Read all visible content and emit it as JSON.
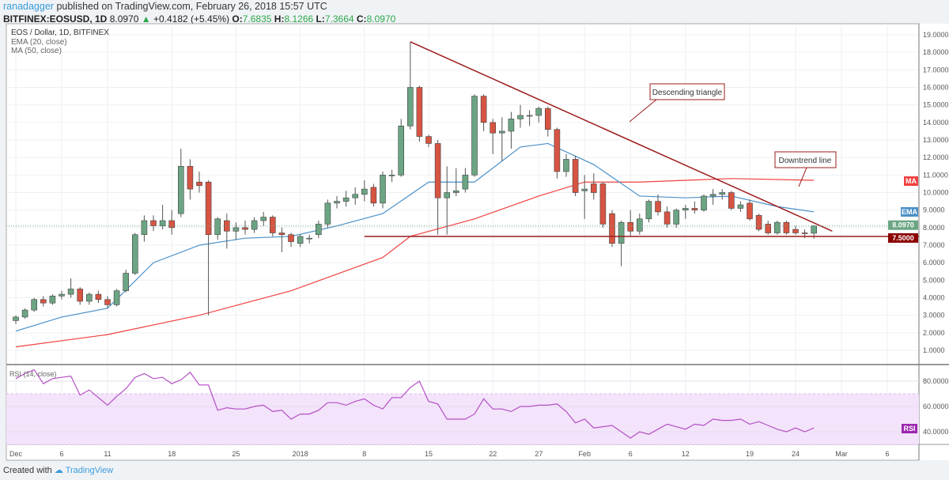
{
  "header": {
    "user": "ranadagger",
    "published": "published on TradingView.com, February 26, 2018 15:57 UTC",
    "symbol": "BITFINEX:EOSUSD, 1D",
    "last": "8.0970",
    "change": "+0.4182 (+5.45%)",
    "o_label": "O:",
    "o": "7.6835",
    "h_label": "H:",
    "h": "8.1266",
    "l_label": "L:",
    "l": "7.3664",
    "c_label": "C:",
    "c": "8.0970"
  },
  "footer": {
    "created": "Created with",
    "brand": "TradingView"
  },
  "chart_data": {
    "type": "candlestick",
    "title": "EOS / Dollar, 1D, BITFINEX",
    "legend": [
      "EMA (20, close)",
      "MA (50, close)"
    ],
    "ylim": [
      0,
      19.6
    ],
    "yticks": [
      "1.0000",
      "2.0000",
      "3.0000",
      "4.0000",
      "5.0000",
      "6.0000",
      "7.0000",
      "8.0000",
      "9.0000",
      "10.0000",
      "11.0000",
      "12.0000",
      "13.0000",
      "14.0000",
      "15.0000",
      "16.0000",
      "17.0000",
      "18.0000",
      "19.0000"
    ],
    "xticks": [
      {
        "day": 0,
        "label": "Dec"
      },
      {
        "day": 5,
        "label": "6"
      },
      {
        "day": 10,
        "label": "11"
      },
      {
        "day": 17,
        "label": "18"
      },
      {
        "day": 24,
        "label": "25"
      },
      {
        "day": 31,
        "label": "2018"
      },
      {
        "day": 38,
        "label": "8"
      },
      {
        "day": 45,
        "label": "15"
      },
      {
        "day": 52,
        "label": "22"
      },
      {
        "day": 57,
        "label": "27"
      },
      {
        "day": 62,
        "label": "Feb"
      },
      {
        "day": 67,
        "label": "6"
      },
      {
        "day": 73,
        "label": "12"
      },
      {
        "day": 80,
        "label": "19"
      },
      {
        "day": 85,
        "label": "24"
      },
      {
        "day": 90,
        "label": "Mar"
      },
      {
        "day": 95,
        "label": "6"
      }
    ],
    "ohlc": [
      [
        2.7,
        3.0,
        2.5,
        2.9
      ],
      [
        2.9,
        3.4,
        2.8,
        3.3
      ],
      [
        3.3,
        4.0,
        3.2,
        3.9
      ],
      [
        3.9,
        4.1,
        3.5,
        3.7
      ],
      [
        3.7,
        4.2,
        3.6,
        4.1
      ],
      [
        4.1,
        4.4,
        3.9,
        4.2
      ],
      [
        4.2,
        5.1,
        4.0,
        4.5
      ],
      [
        4.5,
        4.6,
        3.6,
        3.8
      ],
      [
        3.8,
        4.3,
        3.6,
        4.2
      ],
      [
        4.2,
        4.4,
        3.7,
        3.9
      ],
      [
        3.9,
        4.1,
        3.4,
        3.6
      ],
      [
        3.6,
        4.5,
        3.5,
        4.4
      ],
      [
        4.4,
        5.6,
        4.3,
        5.4
      ],
      [
        5.4,
        7.7,
        5.3,
        7.6
      ],
      [
        7.6,
        8.7,
        7.2,
        8.4
      ],
      [
        8.4,
        8.7,
        7.8,
        8.1
      ],
      [
        8.1,
        9.3,
        7.9,
        8.4
      ],
      [
        8.4,
        9.0,
        7.6,
        8.0
      ],
      [
        8.8,
        12.5,
        8.6,
        11.5
      ],
      [
        11.5,
        11.9,
        9.6,
        10.2
      ],
      [
        10.6,
        11.2,
        10.0,
        10.4
      ],
      [
        10.6,
        10.7,
        3.0,
        7.6
      ],
      [
        7.6,
        8.6,
        7.3,
        8.5
      ],
      [
        8.4,
        8.8,
        6.8,
        7.8
      ],
      [
        7.8,
        8.3,
        7.3,
        8.0
      ],
      [
        8.0,
        8.4,
        7.6,
        7.9
      ],
      [
        7.9,
        8.6,
        7.7,
        8.4
      ],
      [
        8.4,
        8.9,
        8.1,
        8.6
      ],
      [
        8.6,
        8.7,
        7.5,
        7.7
      ],
      [
        7.7,
        8.0,
        6.6,
        7.6
      ],
      [
        7.6,
        7.7,
        6.9,
        7.2
      ],
      [
        7.1,
        7.6,
        6.9,
        7.5
      ],
      [
        7.4,
        7.6,
        7.1,
        7.4
      ],
      [
        7.6,
        8.4,
        7.4,
        8.2
      ],
      [
        8.2,
        9.6,
        8.0,
        9.4
      ],
      [
        9.4,
        9.8,
        9.1,
        9.5
      ],
      [
        9.5,
        10.1,
        9.2,
        9.7
      ],
      [
        9.7,
        10.3,
        9.3,
        9.9
      ],
      [
        9.9,
        10.7,
        9.5,
        10.2
      ],
      [
        10.3,
        10.5,
        9.2,
        9.4
      ],
      [
        9.4,
        11.2,
        9.1,
        11.0
      ],
      [
        11.0,
        11.3,
        10.6,
        11.0
      ],
      [
        11.0,
        14.2,
        10.9,
        13.8
      ],
      [
        13.8,
        18.6,
        13.6,
        16.0
      ],
      [
        16.0,
        16.1,
        12.9,
        13.2
      ],
      [
        13.2,
        13.3,
        12.6,
        12.8
      ],
      [
        12.8,
        13.0,
        7.6,
        9.7
      ],
      [
        9.7,
        11.5,
        7.6,
        10.0
      ],
      [
        10.0,
        11.4,
        9.8,
        10.1
      ],
      [
        10.2,
        11.4,
        10.0,
        11.0
      ],
      [
        11.0,
        15.6,
        10.9,
        15.5
      ],
      [
        15.5,
        15.6,
        13.5,
        14.0
      ],
      [
        14.0,
        14.2,
        12.2,
        13.4
      ],
      [
        13.4,
        14.3,
        11.8,
        13.5
      ],
      [
        13.5,
        14.6,
        12.5,
        14.2
      ],
      [
        14.2,
        15.0,
        13.7,
        14.4
      ],
      [
        14.4,
        14.7,
        13.8,
        14.4
      ],
      [
        14.4,
        14.9,
        14.0,
        14.8
      ],
      [
        14.8,
        14.9,
        13.2,
        13.6
      ],
      [
        13.6,
        13.7,
        10.8,
        11.2
      ],
      [
        11.2,
        12.2,
        10.9,
        11.9
      ],
      [
        11.9,
        12.1,
        9.8,
        10.0
      ],
      [
        10.1,
        11.0,
        8.5,
        10.2
      ],
      [
        10.5,
        11.1,
        9.6,
        10.0
      ],
      [
        10.5,
        10.6,
        8.0,
        8.2
      ],
      [
        8.8,
        9.0,
        6.9,
        7.1
      ],
      [
        7.1,
        8.4,
        5.8,
        8.3
      ],
      [
        8.3,
        9.0,
        7.5,
        7.8
      ],
      [
        7.8,
        8.8,
        7.6,
        8.5
      ],
      [
        8.5,
        9.6,
        8.3,
        9.5
      ],
      [
        9.5,
        9.9,
        8.7,
        8.9
      ],
      [
        8.9,
        9.2,
        8.0,
        8.2
      ],
      [
        8.2,
        9.1,
        8.0,
        9.0
      ],
      [
        9.0,
        9.3,
        8.5,
        9.1
      ],
      [
        9.1,
        9.5,
        8.8,
        9.0
      ],
      [
        9.0,
        9.9,
        8.9,
        9.8
      ],
      [
        9.8,
        10.2,
        9.3,
        9.9
      ],
      [
        9.9,
        10.2,
        9.6,
        10.0
      ],
      [
        10.0,
        10.1,
        9.0,
        9.1
      ],
      [
        9.1,
        9.5,
        8.9,
        9.3
      ],
      [
        9.4,
        9.6,
        8.4,
        8.5
      ],
      [
        8.7,
        8.8,
        7.8,
        7.9
      ],
      [
        8.2,
        8.4,
        7.6,
        7.7
      ],
      [
        7.7,
        8.4,
        7.6,
        8.3
      ],
      [
        8.3,
        8.4,
        7.6,
        7.7
      ],
      [
        7.9,
        8.1,
        7.6,
        7.7
      ],
      [
        7.7,
        7.9,
        7.4,
        7.68
      ],
      [
        7.68,
        8.13,
        7.37,
        8.1
      ]
    ],
    "ema": [
      [
        0,
        2.1
      ],
      [
        5,
        2.9
      ],
      [
        10,
        3.4
      ],
      [
        15,
        6.0
      ],
      [
        20,
        7.0
      ],
      [
        25,
        7.4
      ],
      [
        30,
        7.5
      ],
      [
        35,
        8.1
      ],
      [
        40,
        8.8
      ],
      [
        45,
        10.6
      ],
      [
        50,
        10.6
      ],
      [
        55,
        12.6
      ],
      [
        58,
        12.8
      ],
      [
        63,
        11.6
      ],
      [
        68,
        9.8
      ],
      [
        73,
        9.7
      ],
      [
        78,
        9.8
      ],
      [
        83,
        9.2
      ],
      [
        87,
        8.9
      ]
    ],
    "ma": [
      [
        0,
        1.2
      ],
      [
        10,
        1.9
      ],
      [
        20,
        3.0
      ],
      [
        30,
        4.4
      ],
      [
        40,
        6.3
      ],
      [
        43,
        7.5
      ],
      [
        50,
        8.5
      ],
      [
        57,
        9.8
      ],
      [
        62,
        10.6
      ],
      [
        68,
        10.6
      ],
      [
        78,
        10.8
      ],
      [
        87,
        10.7
      ]
    ],
    "ma_label": "MA",
    "ema_label": "EMA",
    "last_label": "8.0970",
    "support_label": "7.5000",
    "support": 7.5,
    "trendline": [
      [
        43,
        18.6
      ],
      [
        89,
        7.8
      ]
    ],
    "annotations": [
      {
        "text": "Descending triangle"
      },
      {
        "text": "Downtrend line"
      }
    ],
    "rsi": {
      "title": "RSI (14, close)",
      "label": "RSI",
      "yticks": [
        "40.0000",
        "60.0000",
        "80.0000"
      ],
      "band": [
        30,
        70
      ],
      "values": [
        82,
        86,
        89,
        78,
        82,
        83,
        84,
        69,
        73,
        67,
        61,
        68,
        74,
        83,
        86,
        82,
        83,
        78,
        81,
        87,
        77,
        77,
        57,
        59,
        58,
        58,
        60,
        61,
        56,
        57,
        50,
        54,
        54,
        57,
        63,
        63,
        61,
        64,
        66,
        61,
        58,
        67,
        67,
        75,
        80,
        64,
        62,
        50,
        50,
        50,
        54,
        66,
        58,
        58,
        56,
        60,
        60,
        61,
        61,
        62,
        56,
        47,
        50,
        43,
        44,
        45,
        40,
        35,
        40,
        38,
        42,
        46,
        44,
        42,
        46,
        45,
        50,
        49,
        49,
        50,
        46,
        48,
        45,
        42,
        40,
        43,
        40,
        43
      ]
    }
  },
  "colors": {
    "up": "#6ba583",
    "down": "#d75442",
    "ema": "#4a90c8",
    "ma": "#f04040",
    "trend": "#9c1c1c",
    "rsi": "#b44fc4"
  }
}
